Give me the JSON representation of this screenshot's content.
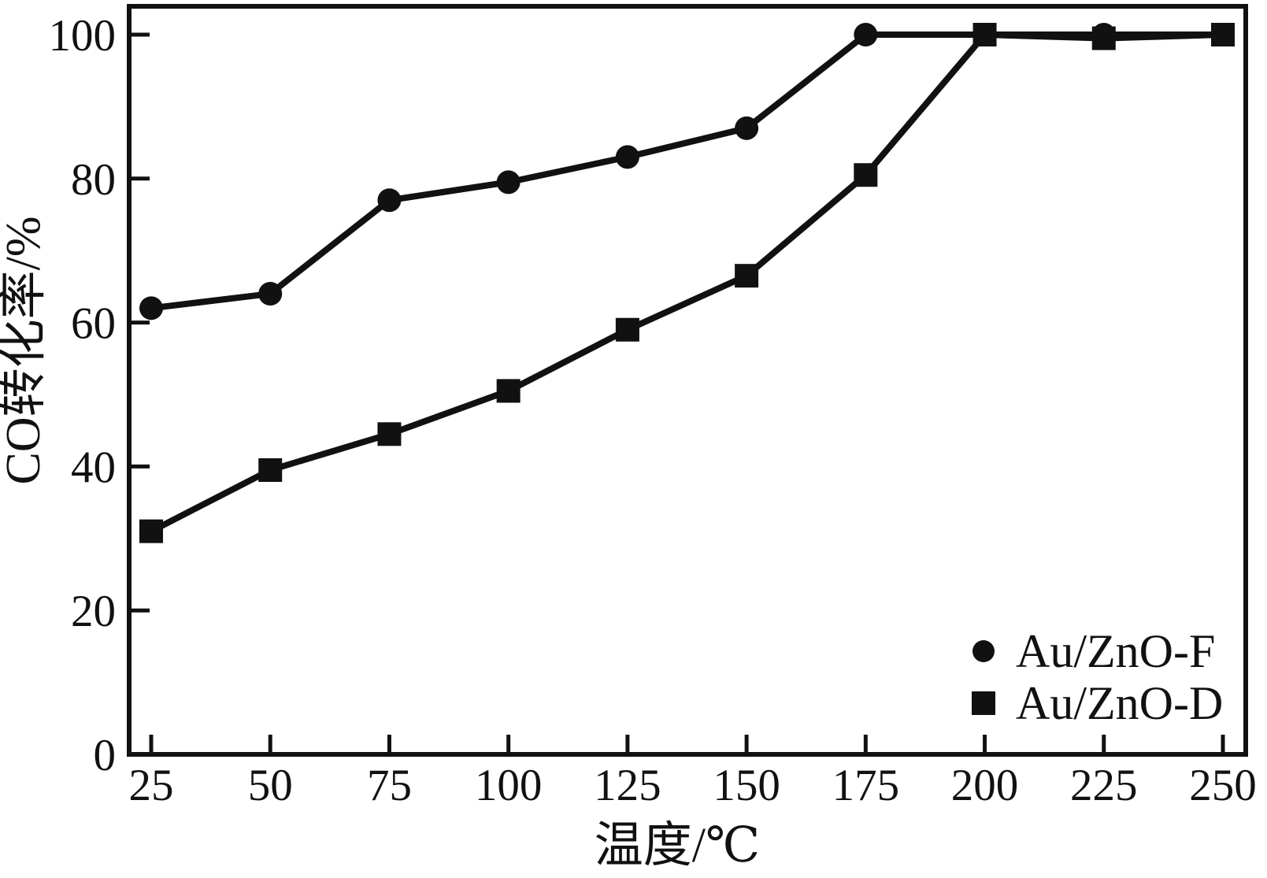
{
  "figure": {
    "background_color": "#ffffff",
    "ink_color": "#111111"
  },
  "chart_data": {
    "type": "line",
    "x": [
      25,
      50,
      75,
      100,
      125,
      150,
      175,
      200,
      225,
      250
    ],
    "series": [
      {
        "name": "Au/ZnO-F",
        "marker": "circle",
        "values": [
          62,
          64,
          77,
          79.5,
          83,
          87,
          100,
          100,
          100,
          100
        ]
      },
      {
        "name": "Au/ZnO-D",
        "marker": "square",
        "values": [
          31,
          39.5,
          44.5,
          50.5,
          59,
          66.5,
          80.5,
          100,
          99.5,
          100
        ]
      }
    ],
    "title": "",
    "xlabel": "温度/℃",
    "ylabel": "CO转化率/%",
    "xlim": [
      25,
      250
    ],
    "ylim": [
      0,
      100
    ],
    "x_ticks": [
      25,
      50,
      75,
      100,
      125,
      150,
      175,
      200,
      225,
      250
    ],
    "y_ticks": [
      0,
      20,
      40,
      60,
      80,
      100
    ],
    "grid": false,
    "legend_position": "lower-right",
    "line_color": "#111111",
    "marker_color": "#111111"
  }
}
